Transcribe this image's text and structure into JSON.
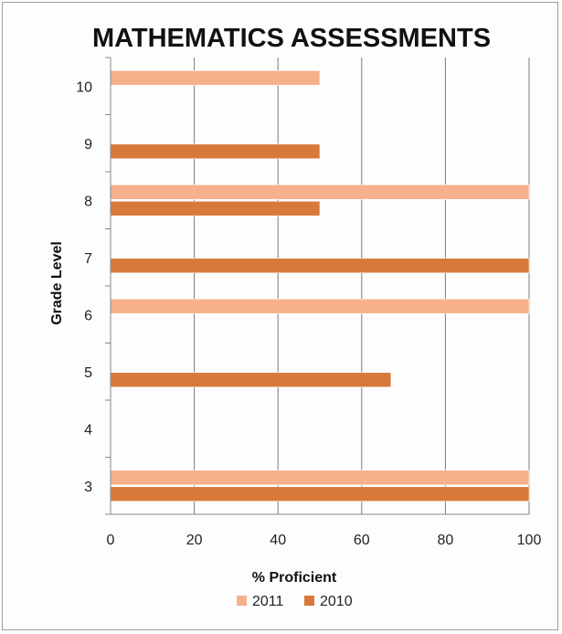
{
  "chart_data": {
    "type": "bar",
    "orientation": "horizontal",
    "title": "MATHEMATICS ASSESSMENTS",
    "xlabel": "% Proficient",
    "ylabel": "Grade Level",
    "categories": [
      "3",
      "4",
      "5",
      "6",
      "7",
      "8",
      "9",
      "10"
    ],
    "xlim": [
      0,
      100
    ],
    "xticks": [
      0,
      20,
      40,
      60,
      80,
      100
    ],
    "grid": true,
    "legend_position": "bottom",
    "series": [
      {
        "name": "2011",
        "color": "#f7b08c",
        "values": [
          100,
          null,
          null,
          100,
          null,
          100,
          null,
          50
        ]
      },
      {
        "name": "2010",
        "color": "#d8793a",
        "values": [
          100,
          null,
          67,
          null,
          100,
          50,
          50,
          null
        ]
      }
    ]
  }
}
